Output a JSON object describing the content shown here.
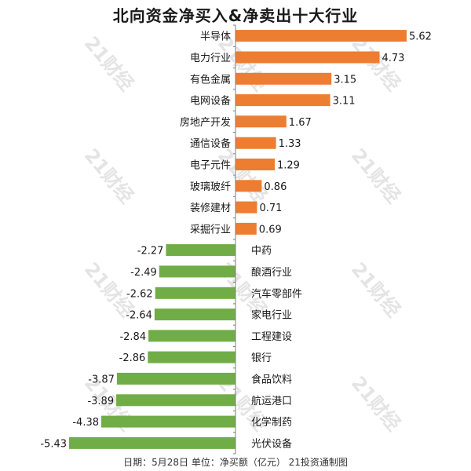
{
  "watermark_text": "21财经",
  "chart_data": {
    "type": "bar",
    "orientation": "horizontal",
    "title": "北向资金净买入&净卖出十大行业",
    "footer": "日期：5月28日 单位：净买额（亿元） 21投资通制图",
    "categories": [
      "半导体",
      "电力行业",
      "有色金属",
      "电网设备",
      "房地产开发",
      "通信设备",
      "电子元件",
      "玻璃玻纤",
      "装修建材",
      "采掘行业",
      "中药",
      "酿酒行业",
      "汽车零部件",
      "家电行业",
      "工程建设",
      "银行",
      "食品饮料",
      "航运港口",
      "化学制药",
      "光伏设备"
    ],
    "values": [
      5.62,
      4.73,
      3.15,
      3.11,
      1.67,
      1.33,
      1.29,
      0.86,
      0.71,
      0.69,
      -2.27,
      -2.49,
      -2.62,
      -2.64,
      -2.84,
      -2.86,
      -3.87,
      -3.89,
      -4.38,
      -5.43
    ],
    "colors": {
      "positive": "#ED7D31",
      "negative": "#70AD47",
      "axis": "#7f7f7f"
    },
    "xlim": [
      -5.43,
      5.62
    ],
    "grid": false,
    "legend": "none"
  }
}
